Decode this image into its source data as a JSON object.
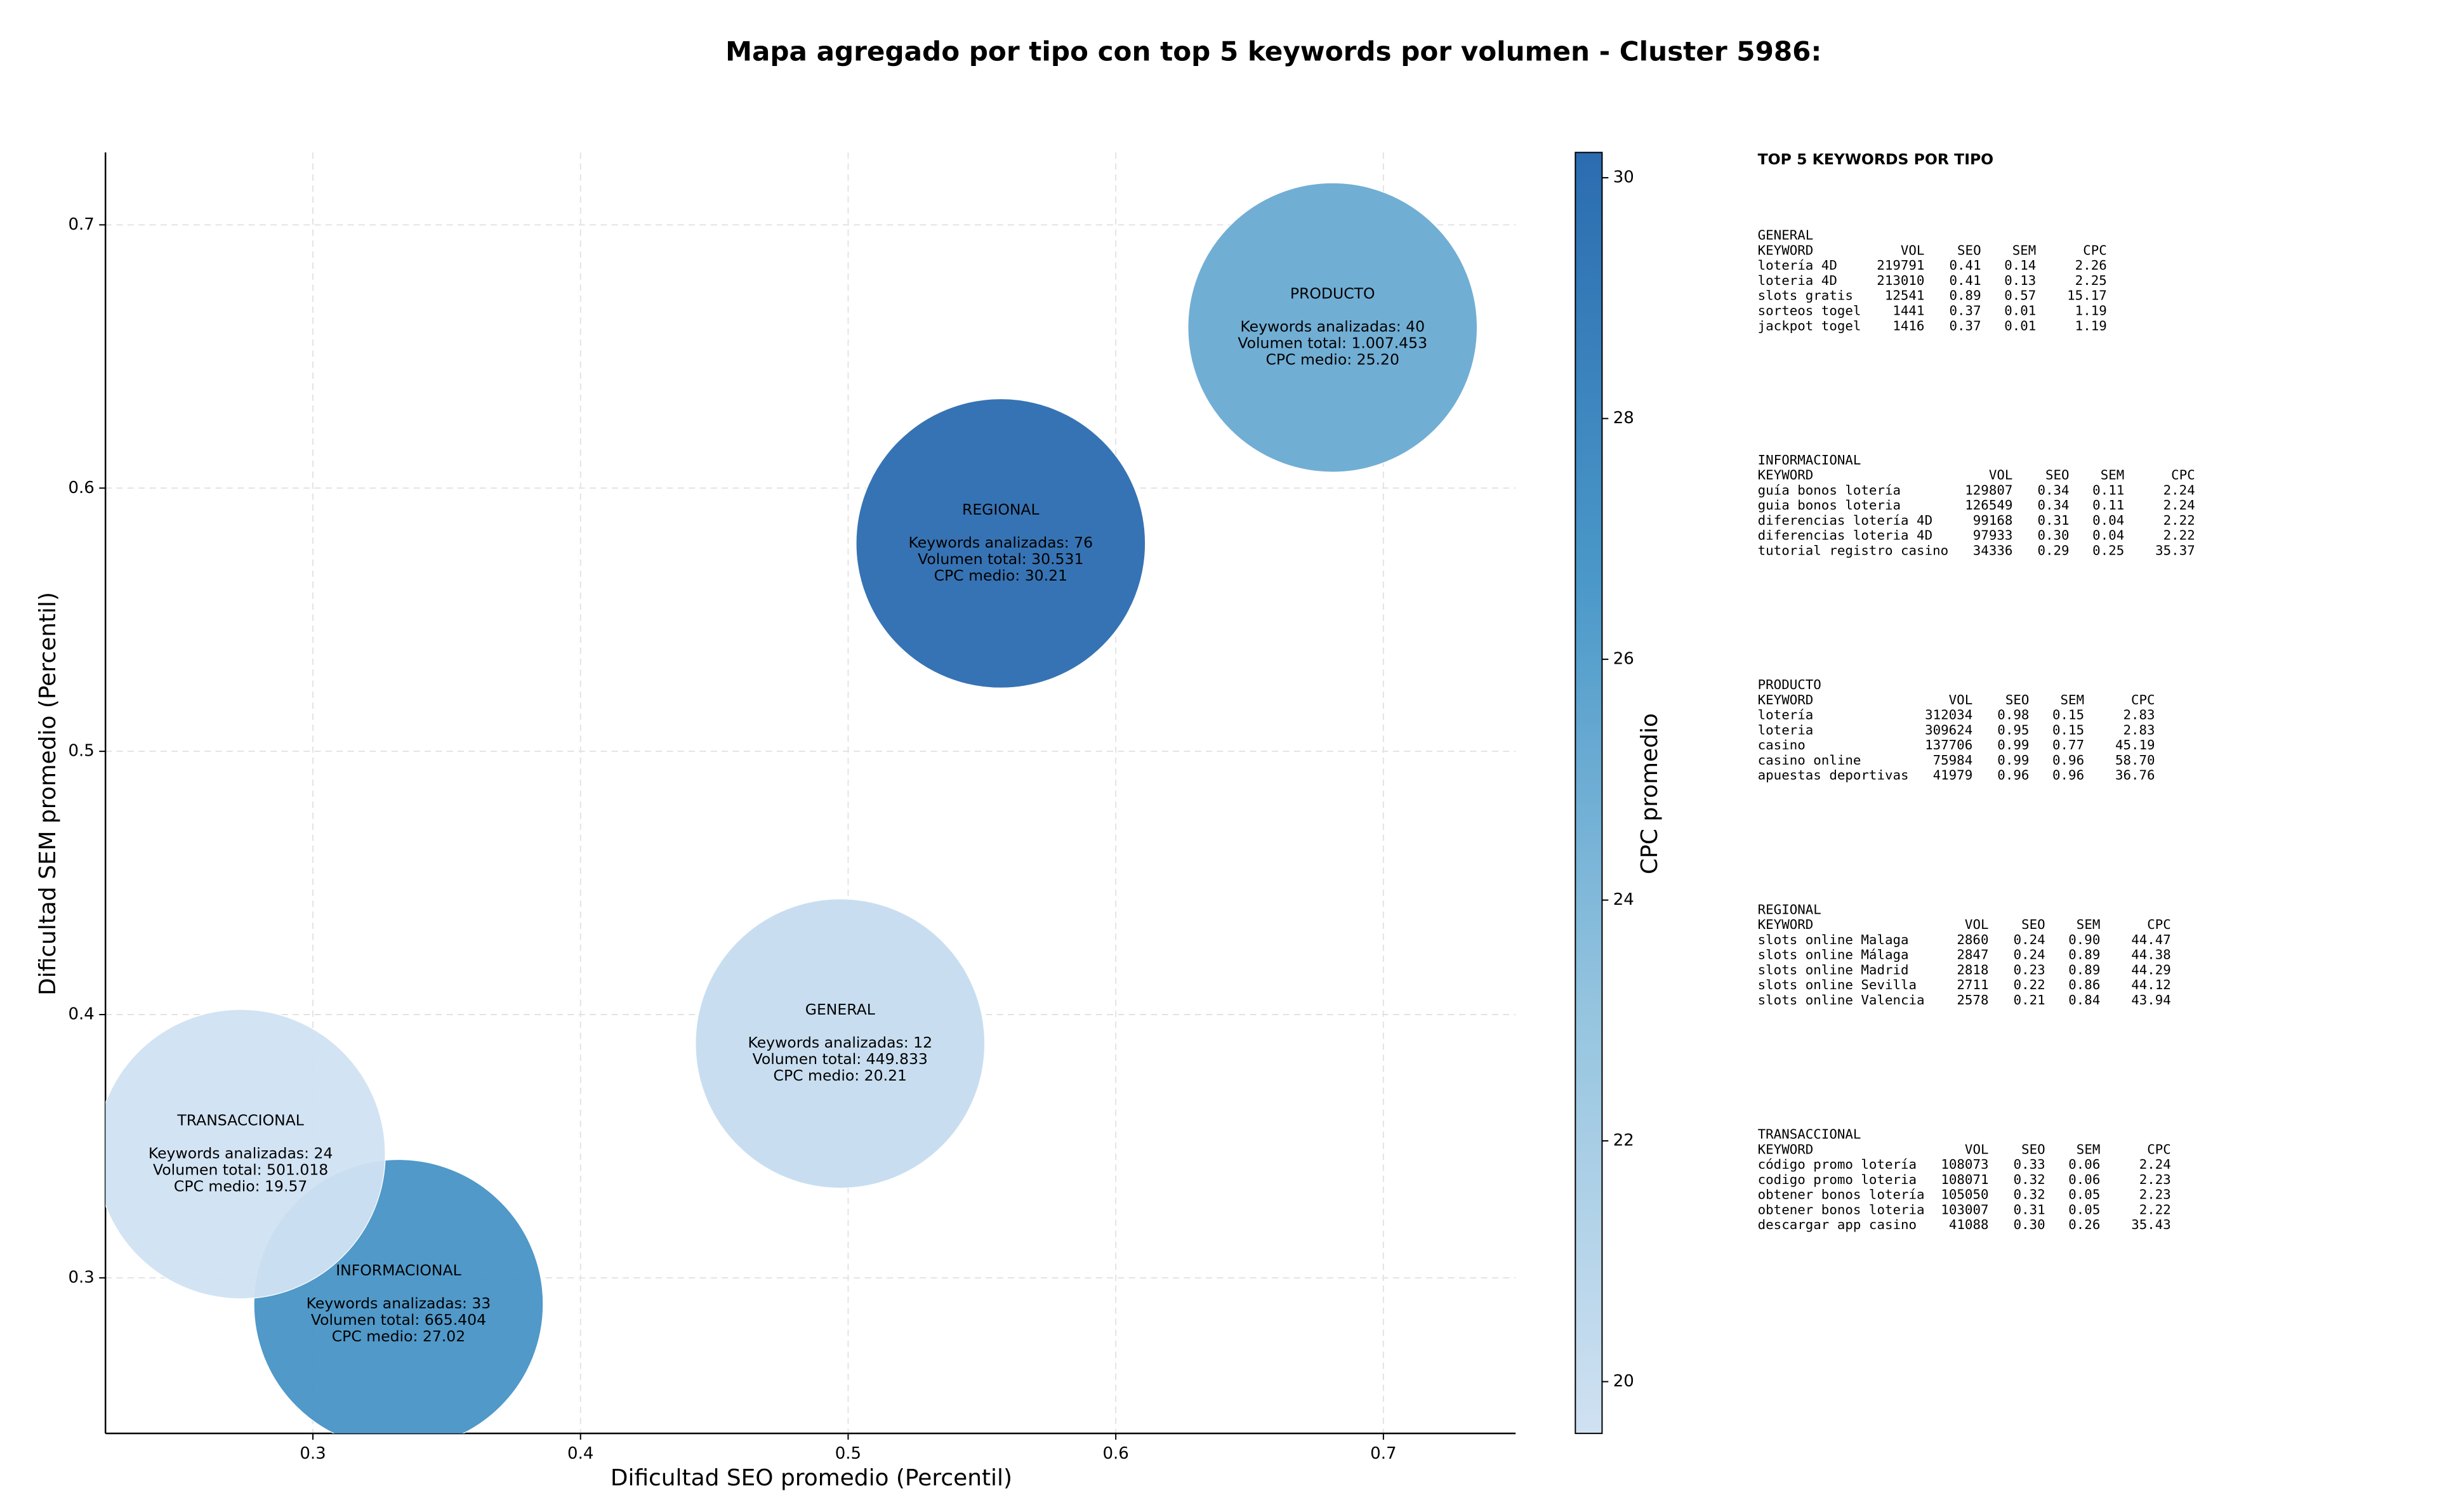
{
  "chart_data": {
    "type": "bubble",
    "title": "Mapa agregado por tipo con top 5 keywords por volumen - Cluster 5986:",
    "x_label": "Dificultad SEO promedio (Percentil)",
    "y_label": "Dificultad SEM promedio (Percentil)",
    "names": [
      "GENERAL",
      "INFORMACIONAL",
      "PRODUCTO",
      "REGIONAL",
      "TRANSACCIONAL"
    ],
    "x": [
      0.497,
      0.332,
      0.681,
      0.557,
      0.273
    ],
    "y": [
      0.389,
      0.29,
      0.661,
      0.579,
      0.347
    ],
    "cpc": [
      20.21,
      27.02,
      25.2,
      30.21,
      19.57
    ],
    "bubble_labels": [
      [
        "Keywords analizadas: 12",
        "Volumen total: 449.833",
        "CPC medio: 20.21"
      ],
      [
        "Keywords analizadas: 33",
        "Volumen total: 665.404",
        "CPC medio: 27.02"
      ],
      [
        "Keywords analizadas: 40",
        "Volumen total: 1.007.453",
        "CPC medio: 25.20"
      ],
      [
        "Keywords analizadas: 76",
        "Volumen total: 30.531",
        "CPC medio: 30.21"
      ],
      [
        "Keywords analizadas: 24",
        "Volumen total: 501.018",
        "CPC medio: 19.57"
      ]
    ],
    "xlim": [
      0.2225,
      0.7494
    ],
    "ylim": [
      0.2409,
      0.7275
    ],
    "xticks": [
      0.3,
      0.4,
      0.5,
      0.6,
      0.7
    ],
    "yticks": [
      0.3,
      0.4,
      0.5,
      0.6,
      0.7
    ],
    "grid": true,
    "colorbar_label": "CPC promedio",
    "clim": [
      19.57,
      30.21
    ],
    "cticks": [
      20,
      22,
      24,
      26,
      28,
      30
    ],
    "colormap": [
      "#d0e1f2",
      "#94c4df",
      "#4a98c9",
      "#2b6cb0"
    ]
  },
  "panel": {
    "title": "TOP 5 KEYWORDS POR TIPO",
    "header": [
      "KEYWORD",
      "VOL",
      "SEO",
      "SEM",
      "CPC"
    ],
    "groups": [
      {
        "name": "GENERAL",
        "rows": [
          [
            "lotería 4D",
            "219791",
            "0.41",
            "0.14",
            "2.26"
          ],
          [
            "loteria 4D",
            "213010",
            "0.41",
            "0.13",
            "2.25"
          ],
          [
            "slots gratis",
            "12541",
            "0.89",
            "0.57",
            "15.17"
          ],
          [
            "sorteos togel",
            "1441",
            "0.37",
            "0.01",
            "1.19"
          ],
          [
            "jackpot togel",
            "1416",
            "0.37",
            "0.01",
            "1.19"
          ]
        ]
      },
      {
        "name": "INFORMACIONAL",
        "rows": [
          [
            "guía bonos lotería",
            "129807",
            "0.34",
            "0.11",
            "2.24"
          ],
          [
            "guia bonos loteria",
            "126549",
            "0.34",
            "0.11",
            "2.24"
          ],
          [
            "diferencias lotería 4D",
            "99168",
            "0.31",
            "0.04",
            "2.22"
          ],
          [
            "diferencias loteria 4D",
            "97933",
            "0.30",
            "0.04",
            "2.22"
          ],
          [
            "tutorial registro casino",
            "34336",
            "0.29",
            "0.25",
            "35.37"
          ]
        ]
      },
      {
        "name": "PRODUCTO",
        "rows": [
          [
            "lotería",
            "312034",
            "0.98",
            "0.15",
            "2.83"
          ],
          [
            "loteria",
            "309624",
            "0.95",
            "0.15",
            "2.83"
          ],
          [
            "casino",
            "137706",
            "0.99",
            "0.77",
            "45.19"
          ],
          [
            "casino online",
            "75984",
            "0.99",
            "0.96",
            "58.70"
          ],
          [
            "apuestas deportivas",
            "41979",
            "0.96",
            "0.96",
            "36.76"
          ]
        ]
      },
      {
        "name": "REGIONAL",
        "rows": [
          [
            "slots online Malaga",
            "2860",
            "0.24",
            "0.90",
            "44.47"
          ],
          [
            "slots online Málaga",
            "2847",
            "0.24",
            "0.89",
            "44.38"
          ],
          [
            "slots online Madrid",
            "2818",
            "0.23",
            "0.89",
            "44.29"
          ],
          [
            "slots online Sevilla",
            "2711",
            "0.22",
            "0.86",
            "44.12"
          ],
          [
            "slots online Valencia",
            "2578",
            "0.21",
            "0.84",
            "43.94"
          ]
        ]
      },
      {
        "name": "TRANSACCIONAL",
        "rows": [
          [
            "código promo lotería",
            "108073",
            "0.33",
            "0.06",
            "2.24"
          ],
          [
            "codigo promo loteria",
            "108071",
            "0.32",
            "0.06",
            "2.23"
          ],
          [
            "obtener bonos lotería",
            "105050",
            "0.32",
            "0.05",
            "2.23"
          ],
          [
            "obtener bonos loteria",
            "103007",
            "0.31",
            "0.05",
            "2.22"
          ],
          [
            "descargar app casino",
            "41088",
            "0.30",
            "0.26",
            "35.43"
          ]
        ]
      }
    ]
  }
}
